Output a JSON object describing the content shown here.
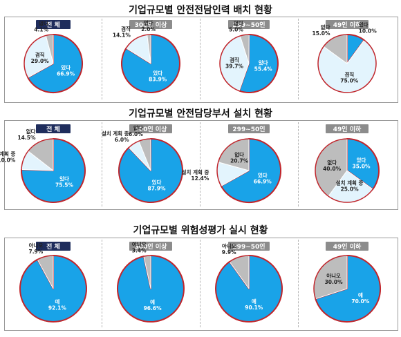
{
  "colors": {
    "blue": "#19a3e8",
    "gray": "#bdbdbd",
    "light": "#e3f4fd",
    "outline": "#c0262c",
    "badge_navy": "#1f2d5c",
    "badge_gray": "#8c8c8c"
  },
  "sections": [
    {
      "title": "기업규모별 안전전담인력 배치 현황"
    },
    {
      "title": "기업규모별 안전담당부서 설치 현황"
    },
    {
      "title": "기업규모별 위험성평가 실시 현황"
    }
  ],
  "chart_data": [
    {
      "type": "pie",
      "title": "기업규모별 안전전담인력 배치 현황",
      "panels": [
        {
          "badge": "전 체",
          "slices": [
            {
              "label": "있다",
              "value": 66.9,
              "value_text": "66.9%",
              "color": "blue"
            },
            {
              "label": "없다",
              "value": 4.1,
              "value_text": "4.1%",
              "color": "gray"
            },
            {
              "label": "겸직",
              "value": 29.0,
              "value_text": "29.0%",
              "color": "light"
            }
          ]
        },
        {
          "badge": "300인 이상",
          "slices": [
            {
              "label": "있다",
              "value": 83.9,
              "value_text": "83.9%",
              "color": "blue"
            },
            {
              "label": "없다",
              "value": 2.0,
              "value_text": "2.0%",
              "color": "gray"
            },
            {
              "label": "겸직",
              "value": 14.1,
              "value_text": "14.1%",
              "color": "light"
            }
          ]
        },
        {
          "badge": "299~50인",
          "slices": [
            {
              "label": "있다",
              "value": 55.4,
              "value_text": "55.4%",
              "color": "blue"
            },
            {
              "label": "없다",
              "value": 5.0,
              "value_text": "5.0%",
              "color": "gray"
            },
            {
              "label": "겸직",
              "value": 39.7,
              "value_text": "39.7%",
              "color": "light"
            }
          ]
        },
        {
          "badge": "49인 이하",
          "slices": [
            {
              "label": "있다",
              "value": 10.0,
              "value_text": "10.0%",
              "color": "blue"
            },
            {
              "label": "없다",
              "value": 15.0,
              "value_text": "15.0%",
              "color": "gray"
            },
            {
              "label": "겸직",
              "value": 75.0,
              "value_text": "75.0%",
              "color": "light"
            }
          ]
        }
      ]
    },
    {
      "type": "pie",
      "title": "기업규모별 안전담당부서 설치 현황",
      "panels": [
        {
          "badge": "전 체",
          "slices": [
            {
              "label": "있다",
              "value": 75.5,
              "value_text": "75.5%",
              "color": "blue"
            },
            {
              "label": "없다",
              "value": 14.5,
              "value_text": "14.5%",
              "color": "gray"
            },
            {
              "label": "설치 계획 중",
              "value": 10.0,
              "value_text": "10.0%",
              "color": "light"
            }
          ]
        },
        {
          "badge": "300인 이상",
          "slices": [
            {
              "label": "있다",
              "value": 87.9,
              "value_text": "87.9%",
              "color": "blue"
            },
            {
              "label": "없다",
              "value": 6.0,
              "value_text": "6.0%",
              "color": "gray"
            },
            {
              "label": "설치 계획 중",
              "value": 6.0,
              "value_text": "6.0%",
              "color": "light"
            }
          ]
        },
        {
          "badge": "299~50인",
          "slices": [
            {
              "label": "있다",
              "value": 66.9,
              "value_text": "66.9%",
              "color": "blue"
            },
            {
              "label": "없다",
              "value": 20.7,
              "value_text": "20.7%",
              "color": "gray"
            },
            {
              "label": "설치 계획 중",
              "value": 12.4,
              "value_text": "12.4%",
              "color": "light"
            }
          ]
        },
        {
          "badge": "49인 이하",
          "slices": [
            {
              "label": "있다",
              "value": 35.0,
              "value_text": "35.0%",
              "color": "blue"
            },
            {
              "label": "없다",
              "value": 40.0,
              "value_text": "40.0%",
              "color": "gray"
            },
            {
              "label": "설치 계획 중",
              "value": 25.0,
              "value_text": "25.0%",
              "color": "light"
            }
          ]
        }
      ]
    },
    {
      "type": "pie",
      "title": "기업규모별 위험성평가 실시 현황",
      "panels": [
        {
          "badge": "전 체",
          "slices": [
            {
              "label": "예",
              "value": 92.1,
              "value_text": "92.1%",
              "color": "blue"
            },
            {
              "label": "아니오",
              "value": 7.9,
              "value_text": "7.9%",
              "color": "gray"
            }
          ]
        },
        {
          "badge": "300인 이상",
          "slices": [
            {
              "label": "예",
              "value": 96.6,
              "value_text": "96.6%",
              "color": "blue"
            },
            {
              "label": "아니오",
              "value": 3.4,
              "value_text": "3.4%",
              "color": "gray"
            }
          ]
        },
        {
          "badge": "299~50인",
          "slices": [
            {
              "label": "예",
              "value": 90.1,
              "value_text": "90.1%",
              "color": "blue"
            },
            {
              "label": "아니오",
              "value": 9.9,
              "value_text": "9.9%",
              "color": "gray"
            }
          ]
        },
        {
          "badge": "49인 이하",
          "slices": [
            {
              "label": "예",
              "value": 70.0,
              "value_text": "70.0%",
              "color": "blue"
            },
            {
              "label": "아니오",
              "value": 30.0,
              "value_text": "30.0%",
              "color": "gray"
            }
          ]
        }
      ]
    }
  ]
}
